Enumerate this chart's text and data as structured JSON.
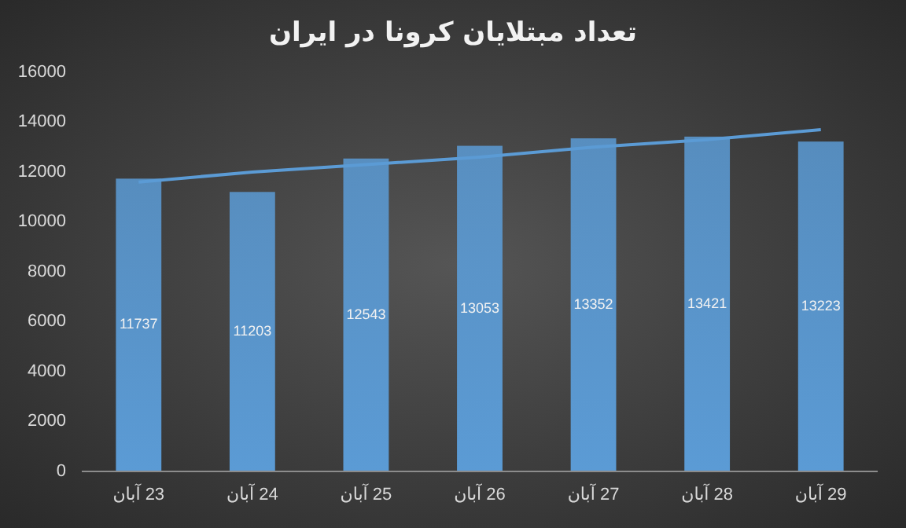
{
  "chart_data": {
    "type": "bar",
    "title": "تعداد مبتلایان کرونا در ایران",
    "categories": [
      "23 آبان",
      "24 آبان",
      "25 آبان",
      "26 آبان",
      "27 آبان",
      "28 آبان",
      "29 آبان"
    ],
    "series": [
      {
        "color": "#5b9bd5",
        "values": [
          11737,
          11203,
          12543,
          13053,
          13352,
          13421,
          13223
        ],
        "value_labels": [
          "11737",
          "11203",
          "12543",
          "13053",
          "13352",
          "13421",
          "13223"
        ]
      },
      {
        "type": "line",
        "color": "#5b9bd5",
        "values": [
          11600,
          12000,
          12300,
          12600,
          13000,
          13300,
          13700
        ]
      }
    ],
    "ylim": [
      0,
      16000
    ],
    "yticks": [
      0,
      2000,
      4000,
      6000,
      8000,
      10000,
      12000,
      14000,
      16000
    ],
    "marker": "none"
  }
}
